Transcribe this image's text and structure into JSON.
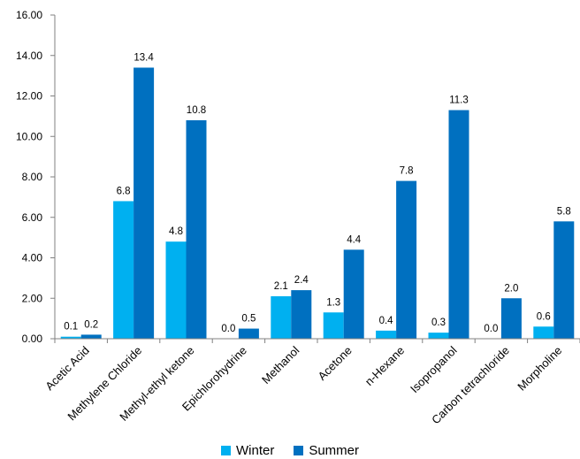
{
  "chart_data": {
    "type": "bar",
    "categories": [
      "Acetic Acid",
      "Methylene Chloride",
      "Methyl-ethyl ketone",
      "Epichlorohydrine",
      "Methanol",
      "Acetone",
      "n-Hexane",
      "Isopropanol",
      "Carbon tetrachloride",
      "Morpholine"
    ],
    "series": [
      {
        "name": "Winter",
        "color": "#00b0f0",
        "values": [
          0.1,
          6.8,
          4.8,
          0.0,
          2.1,
          1.3,
          0.4,
          0.3,
          0.0,
          0.6
        ],
        "labels": [
          "0.1",
          "6.8",
          "4.8",
          "0.0",
          "2.1",
          "1.3",
          "0.4",
          "0.3",
          "0.0",
          "0.6"
        ]
      },
      {
        "name": "Summer",
        "color": "#0070c0",
        "values": [
          0.2,
          13.4,
          10.8,
          0.5,
          2.4,
          4.4,
          7.8,
          11.3,
          2.0,
          5.8
        ],
        "labels": [
          "0.2",
          "13.4",
          "10.8",
          "0.5",
          "2.4",
          "4.4",
          "7.8",
          "11.3",
          "2.0",
          "5.8"
        ]
      }
    ],
    "yticks": [
      "0.00",
      "2.00",
      "4.00",
      "6.00",
      "8.00",
      "10.00",
      "12.00",
      "14.00",
      "16.00"
    ],
    "ylim": [
      0,
      16
    ],
    "grid": false,
    "legend_position": "bottom"
  }
}
